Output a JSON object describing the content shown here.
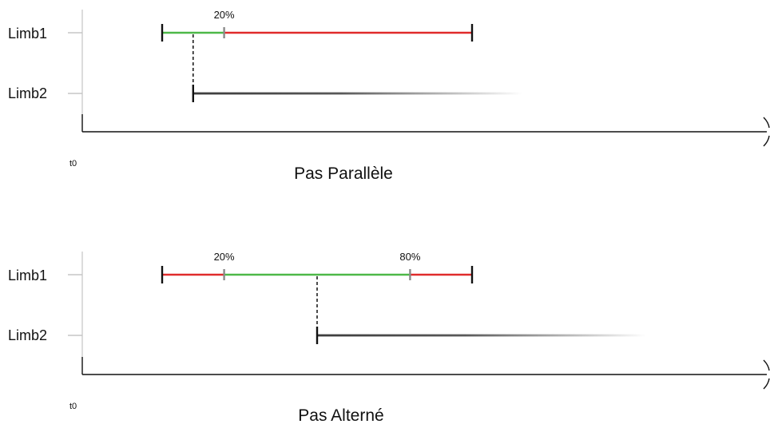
{
  "diagrams": [
    {
      "title": "Pas Parallèle",
      "origin_label": "t0",
      "rows": [
        {
          "label": "Limb1"
        },
        {
          "label": "Limb2"
        }
      ],
      "limb1_segments": [
        {
          "color": "#4db848",
          "from": 0,
          "to": 20
        },
        {
          "color": "#e02b2b",
          "from": 20,
          "to": 100
        }
      ],
      "percent_markers": [
        {
          "label": "20%",
          "value": 20
        }
      ],
      "limb2_start_percent": 10
    },
    {
      "title": "Pas Alterné",
      "origin_label": "t0",
      "rows": [
        {
          "label": "Limb1"
        },
        {
          "label": "Limb2"
        }
      ],
      "limb1_segments": [
        {
          "color": "#e02b2b",
          "from": 0,
          "to": 20
        },
        {
          "color": "#4db848",
          "from": 20,
          "to": 80
        },
        {
          "color": "#e02b2b",
          "from": 80,
          "to": 100
        }
      ],
      "percent_markers": [
        {
          "label": "20%",
          "value": 20
        },
        {
          "label": "80%",
          "value": 80
        }
      ],
      "limb2_start_percent": 50
    }
  ],
  "colors": {
    "axis": "#111111",
    "tick_gray": "#8a8a8a",
    "limb2_line": "#3c3c3c"
  }
}
